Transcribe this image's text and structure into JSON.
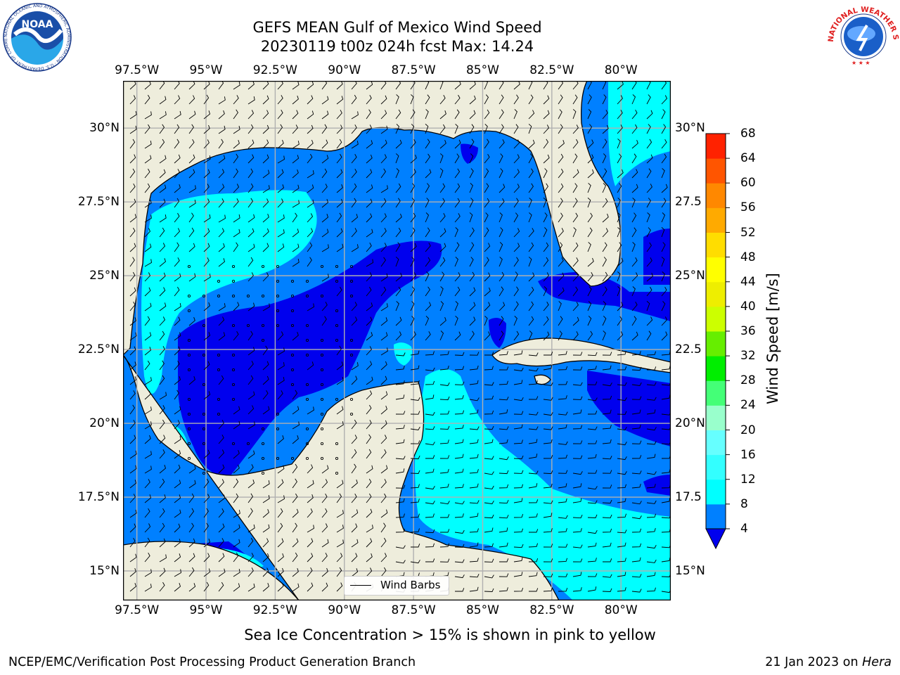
{
  "title": {
    "line1": "GEFS MEAN Gulf of Mexico Wind Speed",
    "line2": "20230119 t00z 024h fcst   Max: 14.24"
  },
  "map": {
    "lon_ticks": [
      "97.5°W",
      "95°W",
      "92.5°W",
      "90°W",
      "87.5°W",
      "85°W",
      "82.5°W",
      "80°W"
    ],
    "lat_ticks_left": [
      "30°N",
      "27.5°N",
      "25°N",
      "22.5°N",
      "20°N",
      "17.5°N",
      "15°N"
    ],
    "lat_ticks_right": [
      "30°N",
      "27.5",
      "25°N",
      "22.5",
      "20°N",
      "17.5",
      "15°N"
    ],
    "lon_range": [
      -98,
      -78.2
    ],
    "lat_range": [
      14,
      31.6
    ],
    "colors": {
      "land": "#eeeddc",
      "ocean_4_8": "#0080ff",
      "ocean_under_4": "#0000ee",
      "ocean_8_12": "#00ffff",
      "coastline": "#000000",
      "grid": "#b0b0b0"
    },
    "legend_label": "Wind Barbs"
  },
  "colorbar": {
    "levels": [
      4,
      8,
      12,
      16,
      20,
      24,
      28,
      32,
      36,
      40,
      44,
      48,
      52,
      56,
      60,
      64,
      68
    ],
    "colors": [
      "#0080ff",
      "#00ffff",
      "#33ffff",
      "#66ffff",
      "#99ffcc",
      "#44ff77",
      "#00ee00",
      "#66ee00",
      "#ccff00",
      "#eeee00",
      "#ffff00",
      "#ffdd00",
      "#ffaa00",
      "#ff8800",
      "#ff5500",
      "#ff2200"
    ],
    "under_color": "#0000ee",
    "label": "Wind Speed [m/s]"
  },
  "footnote": "Sea Ice Concentration > 15% is shown in pink to yellow",
  "credit_left": "NCEP/EMC/Verification Post Processing Product Generation Branch",
  "credit_right_date": "21 Jan 2023 on",
  "credit_right_host": "Hera",
  "logos": {
    "noaa": "NOAA",
    "noaa_ring": "NATIONAL OCEANIC AND ATMOSPHERIC ADMINISTRATION · U.S. DEPARTMENT OF COMMERCE",
    "nws_ring": "NATIONAL WEATHER SERVICE"
  }
}
